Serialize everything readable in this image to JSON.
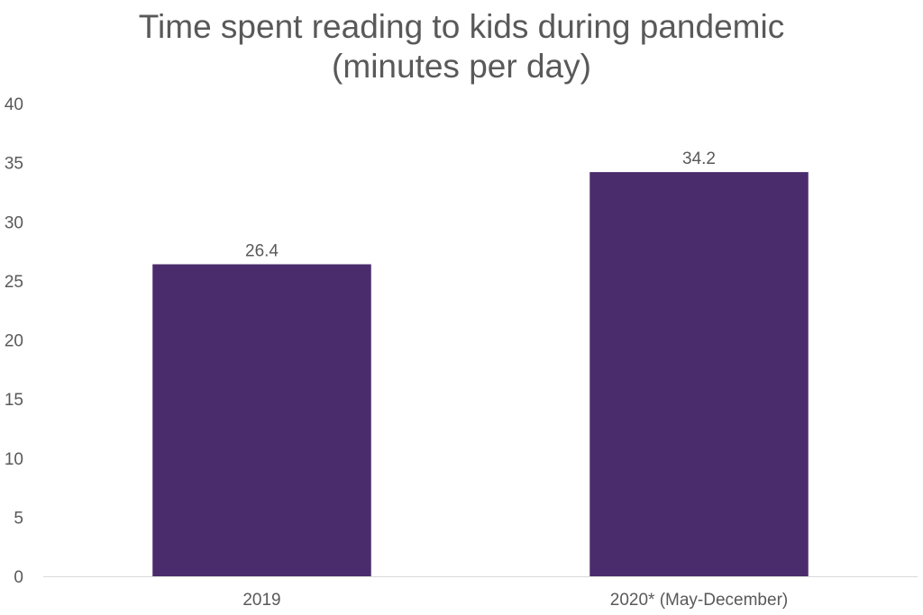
{
  "chart_data": {
    "type": "bar",
    "title": "Time spent reading to kids during pandemic",
    "subtitle": "(minutes per day)",
    "categories": [
      "2019",
      "2020* (May-December)"
    ],
    "values": [
      26.4,
      34.2
    ],
    "value_labels": [
      "26.4",
      "34.2"
    ],
    "ylim": [
      0,
      40
    ],
    "yticks": [
      "0",
      "5",
      "10",
      "15",
      "20",
      "25",
      "30",
      "35",
      "40"
    ],
    "xlabel": "",
    "ylabel": "",
    "grid": false,
    "bar_color": "#4a2c6c",
    "axis_color": "#d9d9d9"
  }
}
